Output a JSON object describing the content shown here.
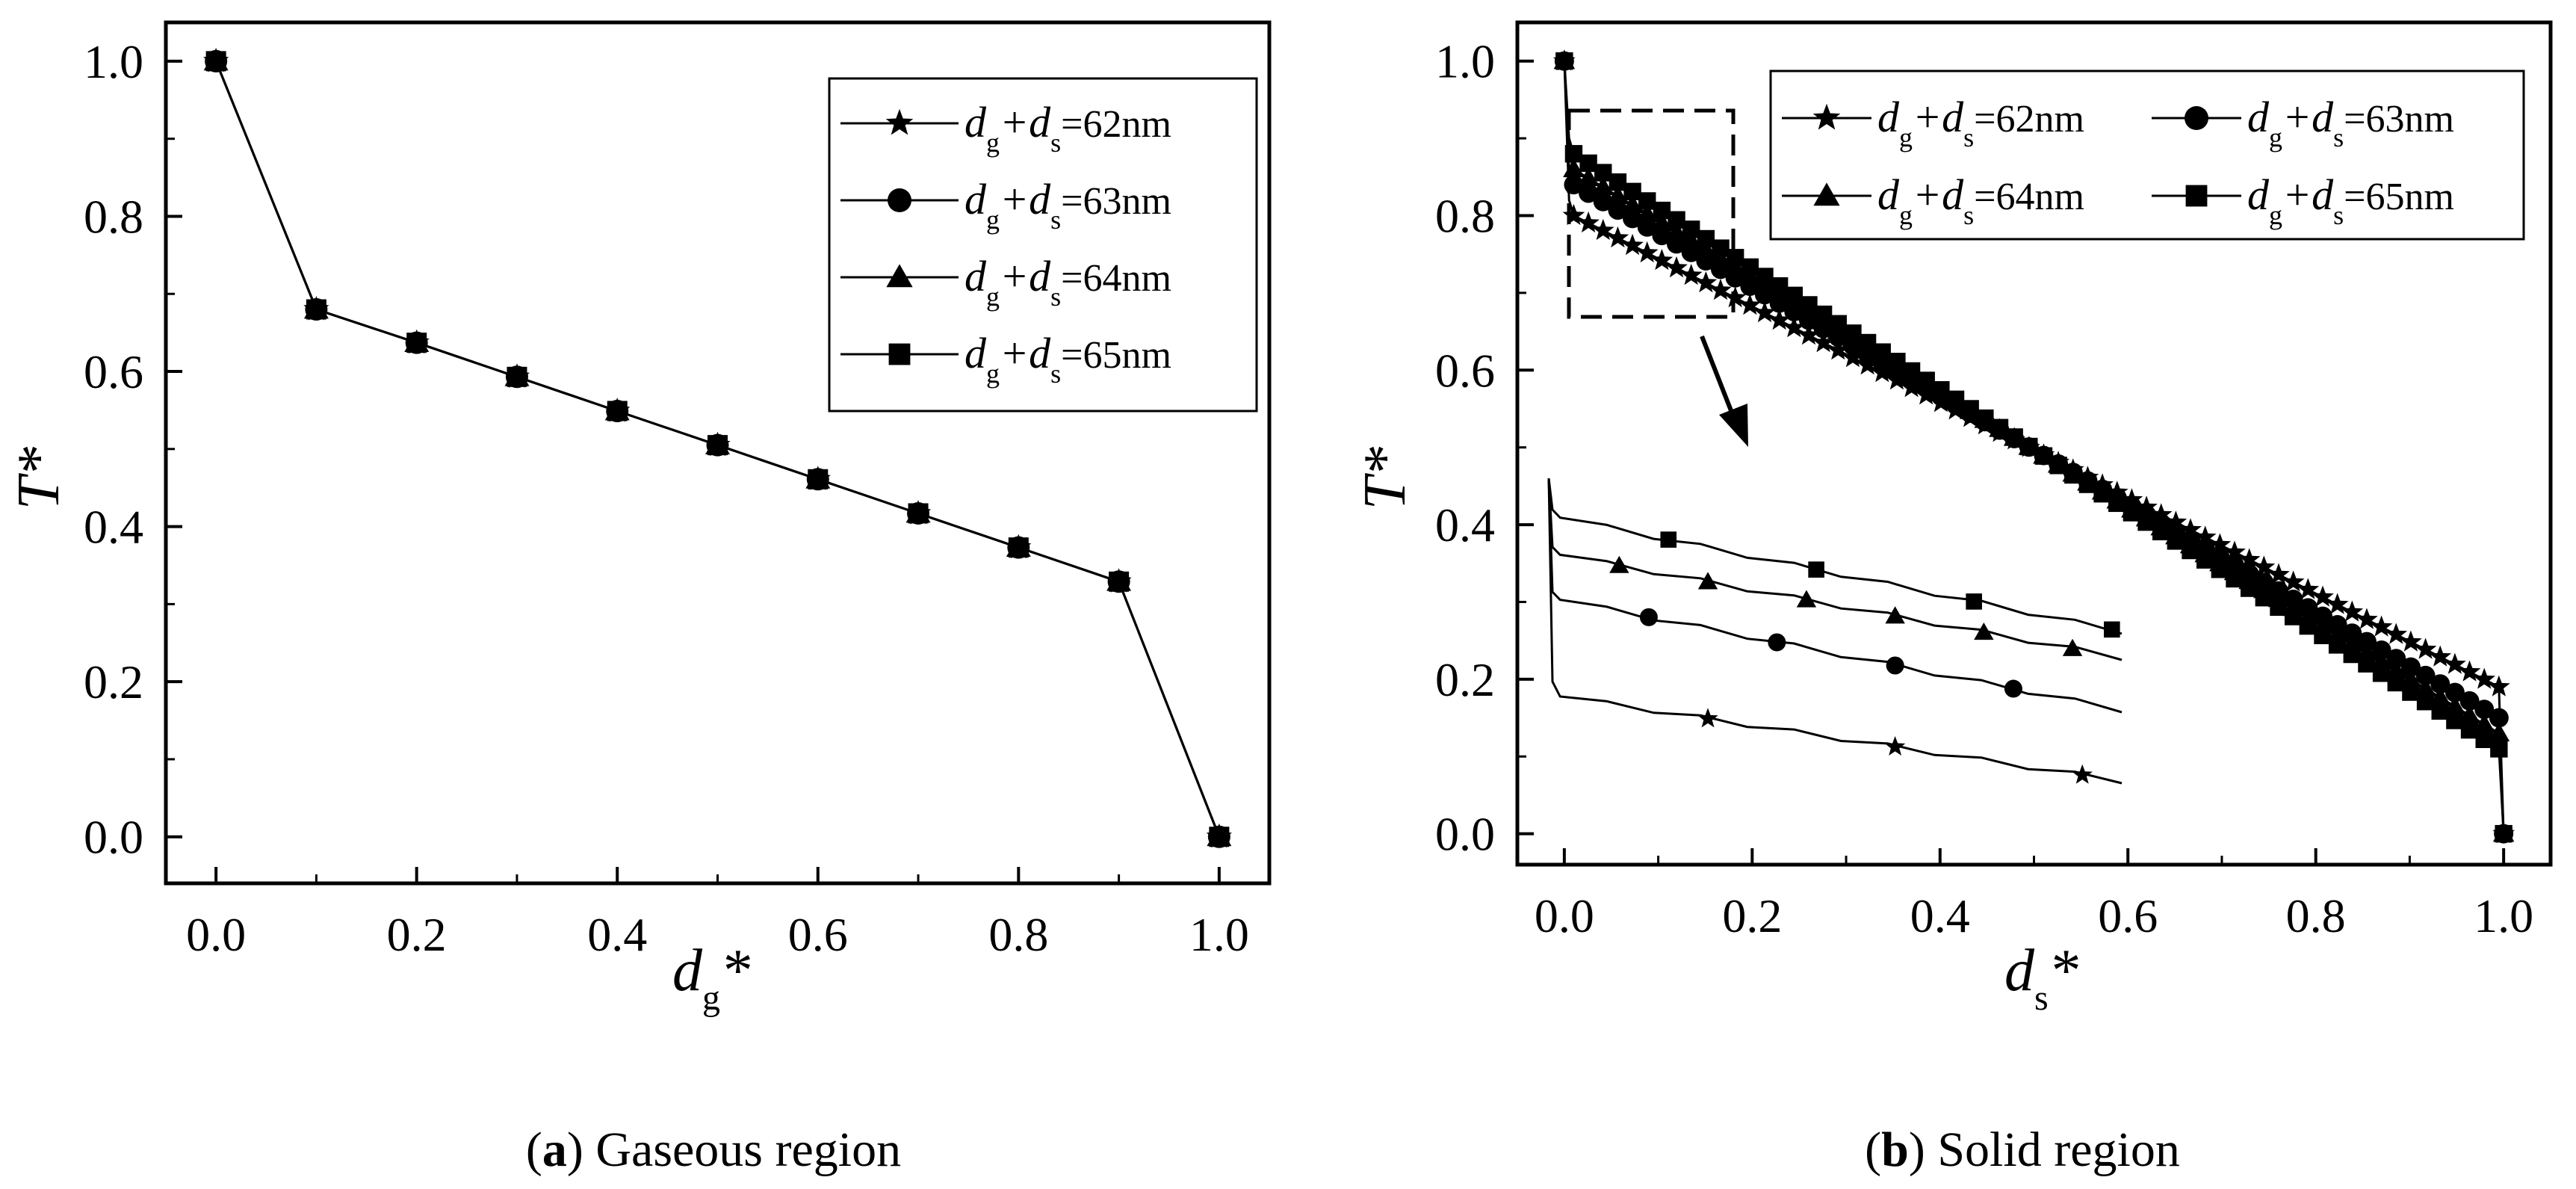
{
  "chart_data": [
    {
      "type": "line",
      "panel": "a",
      "caption_letter": "a",
      "caption_text": "Gaseous region",
      "xlabel": "d",
      "xlabel_sub": "g",
      "xlabel_suffix": "*",
      "ylabel": "T*",
      "xlim": [
        -0.05,
        1.05
      ],
      "ylim": [
        -0.06,
        1.05
      ],
      "xticks": [
        0.0,
        0.2,
        0.4,
        0.6,
        0.8,
        1.0
      ],
      "yticks": [
        0.0,
        0.2,
        0.4,
        0.6,
        0.8,
        1.0
      ],
      "x": [
        0.0,
        0.1,
        0.2,
        0.3,
        0.4,
        0.5,
        0.6,
        0.7,
        0.8,
        0.9,
        1.0
      ],
      "legend_position": "top-right",
      "series": [
        {
          "name": "dg+ds=62nm",
          "label_prefix": "d",
          "label_sub1": "g",
          "label_mid": "+d",
          "label_sub2": "s",
          "label_value": "=62nm",
          "marker": "star",
          "values": [
            1.0,
            0.68,
            0.637,
            0.593,
            0.549,
            0.505,
            0.461,
            0.417,
            0.373,
            0.329,
            0.0
          ]
        },
        {
          "name": "dg+ds=63nm",
          "label_prefix": "d",
          "label_sub1": "g",
          "label_mid": "+d",
          "label_sub2": "s",
          "label_value": "=63nm",
          "marker": "circle",
          "values": [
            1.0,
            0.68,
            0.637,
            0.593,
            0.549,
            0.505,
            0.461,
            0.417,
            0.373,
            0.329,
            0.0
          ]
        },
        {
          "name": "dg+ds=64nm",
          "label_prefix": "d",
          "label_sub1": "g",
          "label_mid": "+d",
          "label_sub2": "s",
          "label_value": "=64nm",
          "marker": "triangle",
          "values": [
            1.0,
            0.68,
            0.637,
            0.593,
            0.549,
            0.505,
            0.461,
            0.417,
            0.373,
            0.329,
            0.0
          ]
        },
        {
          "name": "dg+ds=65nm",
          "label_prefix": "d",
          "label_sub1": "g",
          "label_mid": "+d",
          "label_sub2": "s",
          "label_value": "=65nm",
          "marker": "square",
          "values": [
            1.0,
            0.68,
            0.637,
            0.593,
            0.549,
            0.505,
            0.461,
            0.417,
            0.373,
            0.329,
            0.0
          ]
        }
      ]
    },
    {
      "type": "line",
      "panel": "b",
      "caption_letter": "b",
      "caption_text": "Solid region",
      "xlabel": "d",
      "xlabel_sub": "s",
      "xlabel_suffix": "*",
      "ylabel": "T*",
      "xlim": [
        -0.05,
        1.05
      ],
      "ylim": [
        -0.04,
        1.05
      ],
      "xticks": [
        0.0,
        0.2,
        0.4,
        0.6,
        0.8,
        1.0
      ],
      "yticks": [
        0.0,
        0.2,
        0.4,
        0.6,
        0.8,
        1.0
      ],
      "legend_position": "top-right",
      "inset": "zoom of 0.0-0.16 region, shown in dashed box with arrow",
      "series": [
        {
          "name": "dg+ds=62nm",
          "label_prefix": "d",
          "label_sub1": "g",
          "label_mid": "+d",
          "label_sub2": "s",
          "label_value": "=62nm",
          "marker": "star",
          "start": 1.0,
          "jump_to": 0.8,
          "end_before_drop": 0.19,
          "final": 0.0
        },
        {
          "name": "dg+ds=63nm",
          "label_prefix": "d",
          "label_sub1": "g",
          "label_mid": "+d",
          "label_sub2": "s",
          "label_value": "=63nm",
          "marker": "circle",
          "start": 1.0,
          "jump_to": 0.84,
          "end_before_drop": 0.15,
          "final": 0.0
        },
        {
          "name": "dg+ds=64nm",
          "label_prefix": "d",
          "label_sub1": "g",
          "label_mid": "+d",
          "label_sub2": "s",
          "label_value": "=64nm",
          "marker": "triangle",
          "start": 1.0,
          "jump_to": 0.86,
          "end_before_drop": 0.13,
          "final": 0.0
        },
        {
          "name": "dg+ds=65nm",
          "label_prefix": "d",
          "label_sub1": "g",
          "label_mid": "+d",
          "label_sub2": "s",
          "label_value": "=65nm",
          "marker": "square",
          "start": 1.0,
          "jump_to": 0.88,
          "end_before_drop": 0.11,
          "final": 0.0
        }
      ]
    }
  ]
}
